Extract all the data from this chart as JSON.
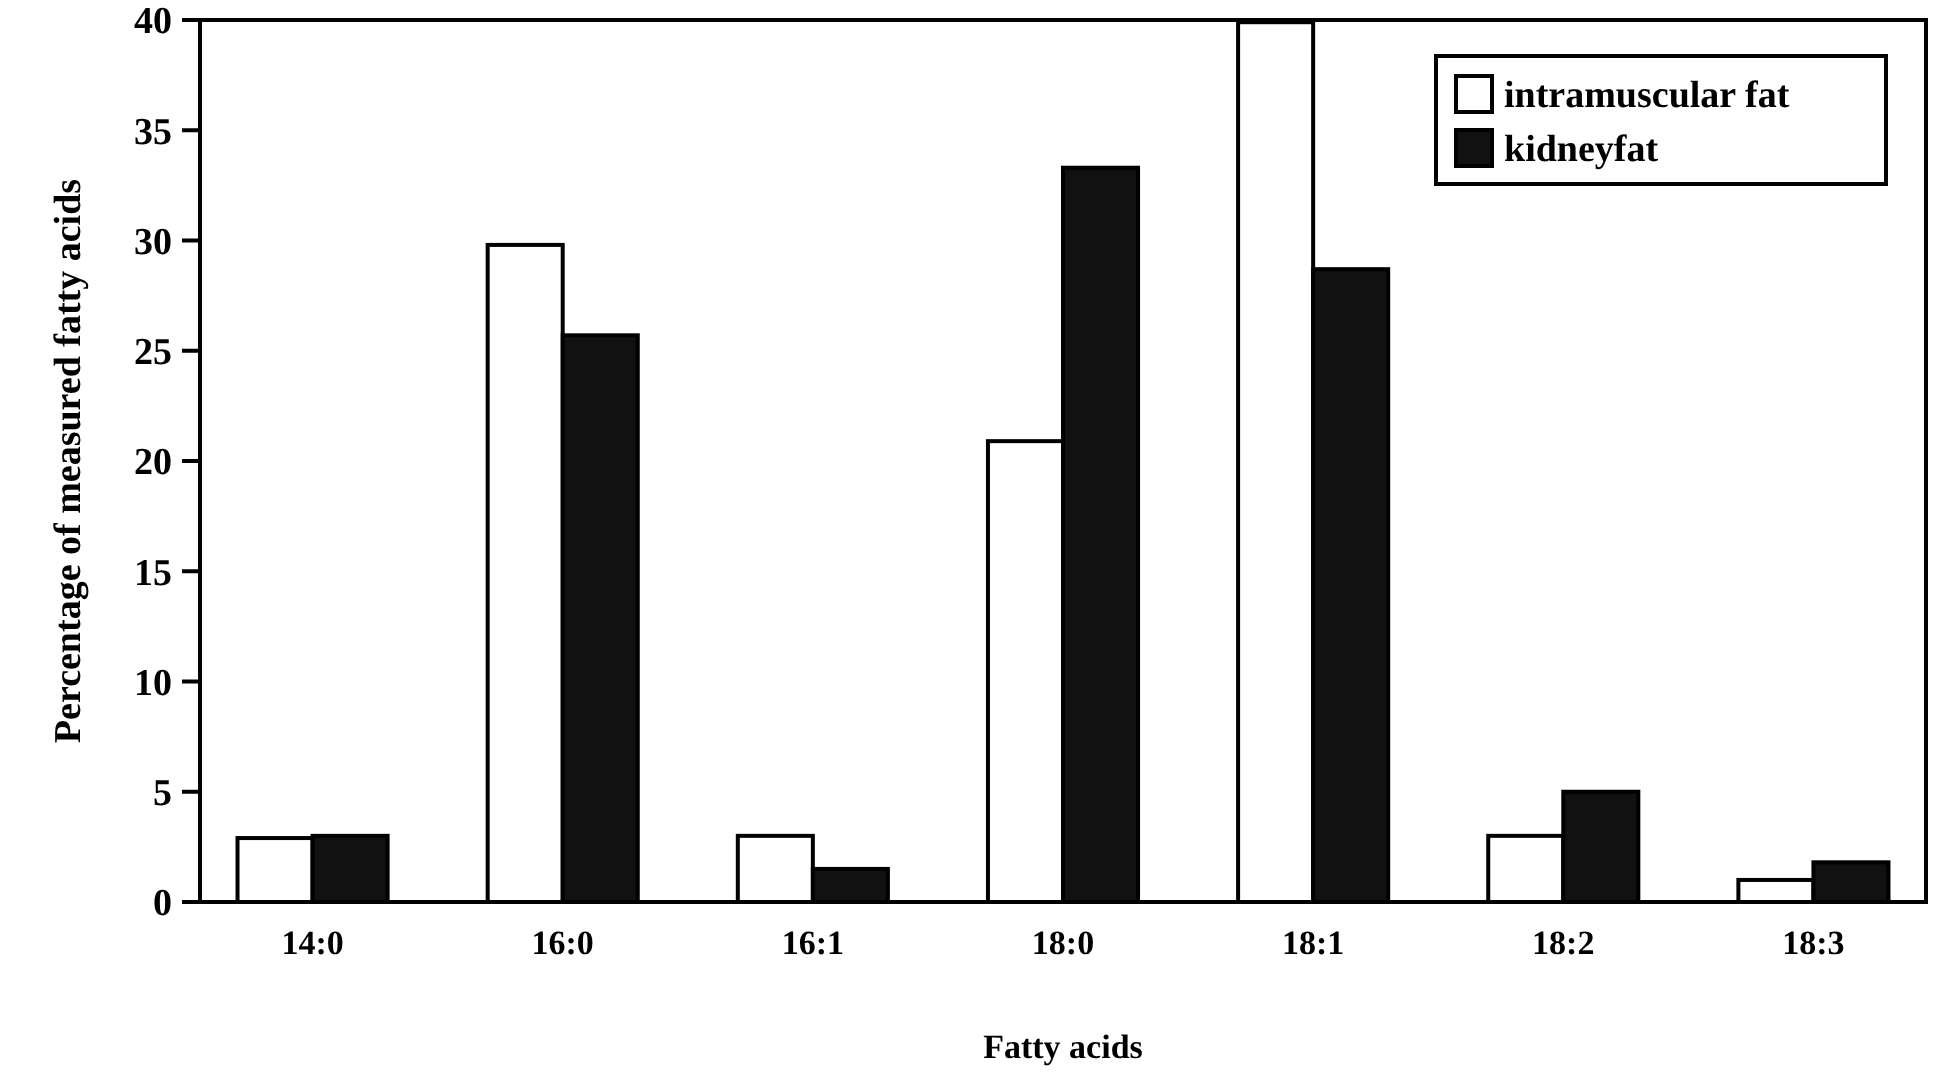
{
  "chart_data": {
    "type": "bar",
    "xlabel": "Fatty acids",
    "ylabel": "Percentage of measured fatty acids",
    "categories": [
      "14:0",
      "16:0",
      "16:1",
      "18:0",
      "18:1",
      "18:2",
      "18:3"
    ],
    "series": [
      {
        "name": "intramuscular fat",
        "color": "#ffffff",
        "values": [
          2.9,
          29.8,
          3.0,
          20.9,
          39.9,
          3.0,
          1.0
        ]
      },
      {
        "name": "kidneyfat",
        "color": "#111111",
        "values": [
          3.0,
          25.7,
          1.5,
          33.3,
          28.7,
          5.0,
          1.8
        ]
      }
    ],
    "ylim": [
      0,
      40
    ],
    "yticks": [
      0,
      5,
      10,
      15,
      20,
      25,
      30,
      35,
      40
    ],
    "grid": false,
    "legend": "top right"
  }
}
